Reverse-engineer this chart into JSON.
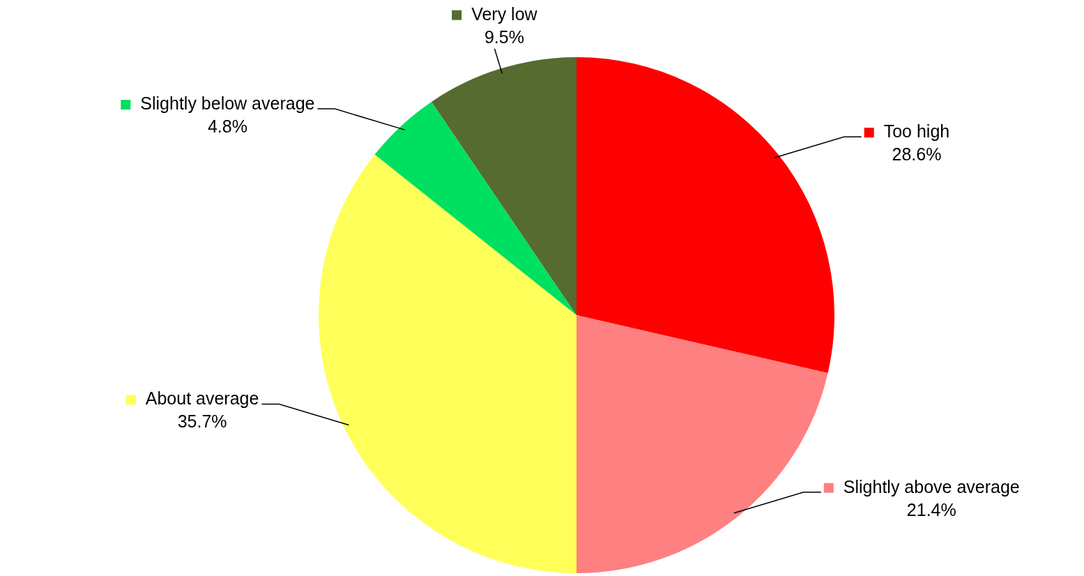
{
  "chart_data": {
    "type": "pie",
    "categories": [
      "Too high",
      "Slightly above average",
      "About average",
      "Slightly below average",
      "Very low"
    ],
    "values": [
      28.6,
      21.4,
      35.7,
      4.8,
      9.5
    ],
    "colors": [
      "#ff0000",
      "#ff8080",
      "#ffff59",
      "#00e060",
      "#556b2f"
    ],
    "value_labels": [
      "28.6%",
      "21.4%",
      "35.7%",
      "4.8%",
      "9.5%"
    ],
    "legend": "top"
  }
}
